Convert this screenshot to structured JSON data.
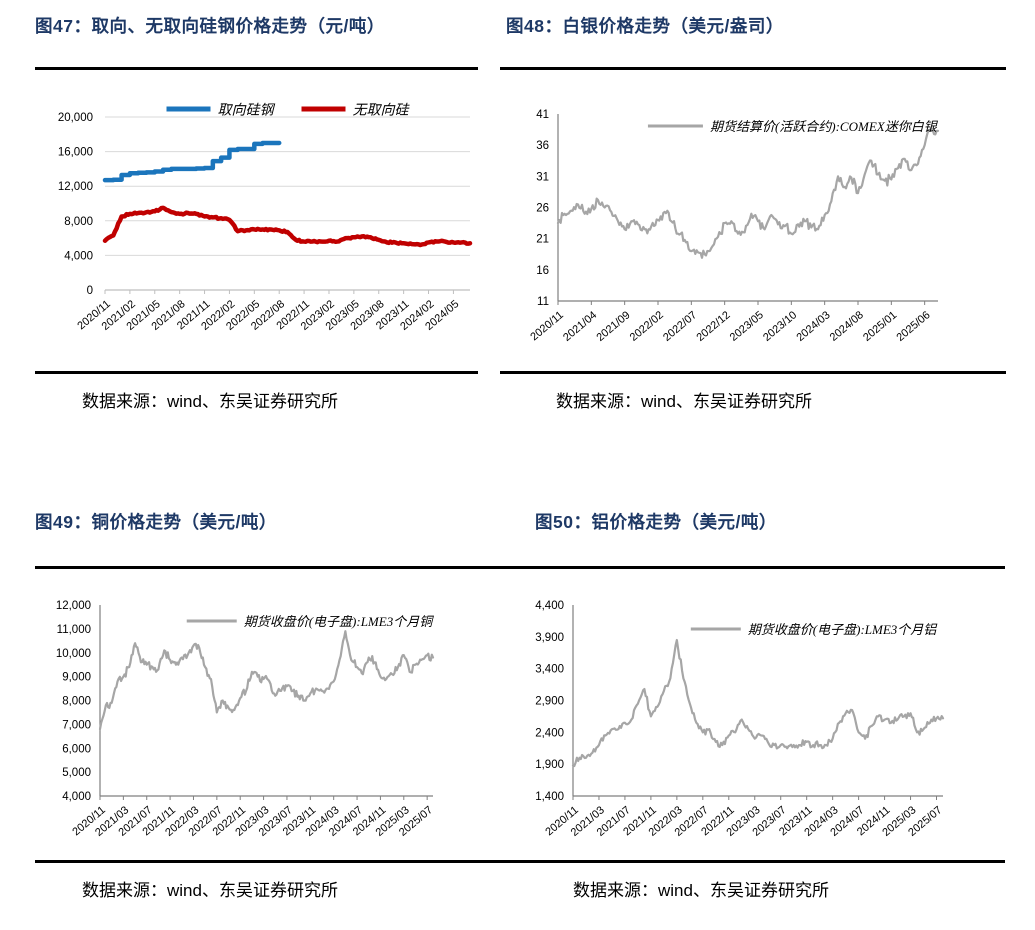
{
  "source_note": "数据来源：wind、东吴证券研究所",
  "style": {
    "title_color": "#1E3966",
    "rule_color": "#000000",
    "grid_color": "#D9D9D9",
    "axis_color_light": "#BFBFBF",
    "axis_color": "#7F7F7F",
    "tick_text_color": "#000000",
    "blue": "#1B75BC",
    "red": "#C00000",
    "gray": "#A6A6A6"
  },
  "chart_data": [
    {
      "type": "line",
      "title": "图47：取向、无取向硅钢价格走势（元/吨）",
      "x_start": "2020/11",
      "x_count": 45,
      "x_ticks": {
        "every": 3,
        "labels": [
          "2020/11",
          "2021/02",
          "2021/05",
          "2021/08",
          "2021/11",
          "2022/02",
          "2022/05",
          "2022/08",
          "2022/11",
          "2023/02",
          "2023/05",
          "2023/08",
          "2023/11",
          "2024/02",
          "2024/05"
        ]
      },
      "ylim": [
        0,
        20000
      ],
      "y_ticks": [
        {
          "v": 0,
          "label": "0"
        },
        {
          "v": 4000,
          "label": "4,000"
        },
        {
          "v": 8000,
          "label": "8,000"
        },
        {
          "v": 12000,
          "label": "12,000"
        },
        {
          "v": 16000,
          "label": "16,000"
        },
        {
          "v": 20000,
          "label": "20,000"
        }
      ],
      "grid": true,
      "axes": [
        "bottom"
      ],
      "legend": {
        "items": [
          {
            "label": "取向硅钢",
            "color": "#1B75BC"
          },
          {
            "label": "无取向硅",
            "color": "#C00000"
          }
        ]
      },
      "series": [
        {
          "name": "取向硅钢",
          "color": "#1B75BC",
          "step": true,
          "noise": 0,
          "values": [
            12700,
            12750,
            13300,
            13500,
            13550,
            13600,
            13700,
            13900,
            14000,
            14000,
            14000,
            14050,
            14100,
            14900,
            15300,
            16200,
            16300,
            16300,
            16900,
            17000,
            17000,
            17000
          ]
        },
        {
          "name": "无取向硅",
          "color": "#C00000",
          "step": false,
          "noise": 110,
          "values": [
            5700,
            6300,
            8500,
            8800,
            8900,
            9000,
            9100,
            9500,
            9000,
            8800,
            8900,
            8800,
            8500,
            8400,
            8300,
            8100,
            6800,
            6900,
            7000,
            7000,
            7000,
            6900,
            6700,
            5800,
            5600,
            5600,
            5600,
            5700,
            5600,
            6000,
            6100,
            6200,
            6100,
            5800,
            5500,
            5500,
            5400,
            5300,
            5200,
            5500,
            5600,
            5600,
            5500,
            5500,
            5400
          ]
        }
      ]
    },
    {
      "type": "line",
      "title": "图48：白银价格走势（美元/盎司）",
      "x_start": "2020/11",
      "x_count": 58,
      "x_ticks": {
        "every": 5,
        "labels": [
          "2020/11",
          "2021/04",
          "2021/09",
          "2022/02",
          "2022/07",
          "2022/12",
          "2023/05",
          "2023/10",
          "2024/03",
          "2024/08",
          "2025/01",
          "2025/06"
        ]
      },
      "ylim": [
        11,
        41
      ],
      "y_ticks": [
        {
          "v": 11,
          "label": "11"
        },
        {
          "v": 16,
          "label": "16"
        },
        {
          "v": 21,
          "label": "21"
        },
        {
          "v": 26,
          "label": "26"
        },
        {
          "v": 31,
          "label": "31"
        },
        {
          "v": 36,
          "label": "36"
        },
        {
          "v": 41,
          "label": "41"
        }
      ],
      "grid": false,
      "axes": [
        "left",
        "bottom"
      ],
      "legend": {
        "items": [
          {
            "label": "期货结算价(活跃合约):COMEX迷你白银",
            "color": "#A6A6A6"
          }
        ]
      },
      "series": [
        {
          "name": "期货结算价(活跃合约):COMEX迷你白银",
          "color": "#A6A6A6",
          "step": false,
          "noise": 0.9,
          "values": [
            23.5,
            25.0,
            25.5,
            26.5,
            25.0,
            25.8,
            27.2,
            26.0,
            25.3,
            23.8,
            22.5,
            23.8,
            23.3,
            22.5,
            23.0,
            24.0,
            25.3,
            23.8,
            21.8,
            20.8,
            19.0,
            18.8,
            18.5,
            19.5,
            21.3,
            23.5,
            23.8,
            21.8,
            22.0,
            25.0,
            23.8,
            22.5,
            24.8,
            23.3,
            23.0,
            21.8,
            23.3,
            23.8,
            22.8,
            22.5,
            24.8,
            27.0,
            31.0,
            29.3,
            30.8,
            28.3,
            31.3,
            33.5,
            31.3,
            30.3,
            30.5,
            32.3,
            33.8,
            32.0,
            33.0,
            36.0,
            38.8,
            38.3
          ]
        }
      ]
    },
    {
      "type": "line",
      "title": "图49：铜价格走势（美元/吨）",
      "x_start": "2020/11",
      "x_count": 58,
      "x_ticks": {
        "every": 4,
        "labels": [
          "2020/11",
          "2021/03",
          "2021/07",
          "2021/11",
          "2022/03",
          "2022/07",
          "2022/11",
          "2023/03",
          "2023/07",
          "2023/11",
          "2024/03",
          "2024/07",
          "2024/11",
          "2025/03",
          "2025/07"
        ]
      },
      "ylim": [
        4000,
        12000
      ],
      "y_ticks": [
        {
          "v": 4000,
          "label": "4,000"
        },
        {
          "v": 5000,
          "label": "5,000"
        },
        {
          "v": 6000,
          "label": "6,000"
        },
        {
          "v": 7000,
          "label": "7,000"
        },
        {
          "v": 8000,
          "label": "8,000"
        },
        {
          "v": 9000,
          "label": "9,000"
        },
        {
          "v": 10000,
          "label": "10,000"
        },
        {
          "v": 11000,
          "label": "11,000"
        },
        {
          "v": 12000,
          "label": "12,000"
        }
      ],
      "grid": false,
      "axes": [
        "left",
        "bottom"
      ],
      "legend": {
        "items": [
          {
            "label": "期货收盘价(电子盘):LME3个月铜",
            "color": "#A6A6A6"
          }
        ]
      },
      "series": [
        {
          "name": "期货收盘价(电子盘):LME3个月铜",
          "color": "#A6A6A6",
          "step": false,
          "noise": 190,
          "values": [
            6800,
            7800,
            7900,
            8800,
            9000,
            9400,
            10400,
            9600,
            9500,
            9400,
            9300,
            10100,
            9700,
            9500,
            9800,
            9900,
            10300,
            10200,
            9400,
            8900,
            7500,
            8000,
            7700,
            7600,
            8100,
            8400,
            9200,
            9000,
            8900,
            8800,
            8200,
            8400,
            8600,
            8400,
            8200,
            8000,
            8300,
            8500,
            8400,
            8500,
            8800,
            9700,
            10900,
            9700,
            9400,
            9100,
            9800,
            9600,
            9000,
            8900,
            9100,
            9400,
            9900,
            9200,
            9500,
            9700,
            9900,
            9800
          ]
        }
      ]
    },
    {
      "type": "line",
      "title": "图50：铝价格走势（美元/吨）",
      "x_start": "2020/11",
      "x_count": 58,
      "x_ticks": {
        "every": 4,
        "labels": [
          "2020/11",
          "2021/03",
          "2021/07",
          "2021/11",
          "2022/03",
          "2022/07",
          "2022/11",
          "2023/03",
          "2023/07",
          "2023/11",
          "2024/03",
          "2024/07",
          "2024/11",
          "2025/03",
          "2025/07"
        ]
      },
      "ylim": [
        1400,
        4400
      ],
      "y_ticks": [
        {
          "v": 1400,
          "label": "1,400"
        },
        {
          "v": 1900,
          "label": "1,900"
        },
        {
          "v": 2400,
          "label": "2,400"
        },
        {
          "v": 2900,
          "label": "2,900"
        },
        {
          "v": 3400,
          "label": "3,400"
        },
        {
          "v": 3900,
          "label": "3,900"
        },
        {
          "v": 4400,
          "label": "4,400"
        }
      ],
      "grid": false,
      "axes": [
        "left",
        "bottom"
      ],
      "legend": {
        "items": [
          {
            "label": "期货收盘价(电子盘):LME3个月铝",
            "color": "#A6A6A6"
          }
        ]
      },
      "series": [
        {
          "name": "期货收盘价(电子盘):LME3个月铝",
          "color": "#A6A6A6",
          "step": false,
          "noise": 60,
          "values": [
            1880,
            2000,
            2000,
            2080,
            2200,
            2350,
            2450,
            2450,
            2550,
            2600,
            2850,
            3080,
            2650,
            2800,
            3050,
            3250,
            3850,
            3250,
            2850,
            2550,
            2400,
            2450,
            2250,
            2200,
            2350,
            2400,
            2600,
            2450,
            2300,
            2350,
            2250,
            2200,
            2200,
            2150,
            2200,
            2200,
            2250,
            2200,
            2200,
            2200,
            2300,
            2550,
            2700,
            2750,
            2400,
            2300,
            2500,
            2650,
            2600,
            2550,
            2600,
            2650,
            2700,
            2400,
            2450,
            2550,
            2620,
            2620
          ]
        }
      ]
    }
  ]
}
